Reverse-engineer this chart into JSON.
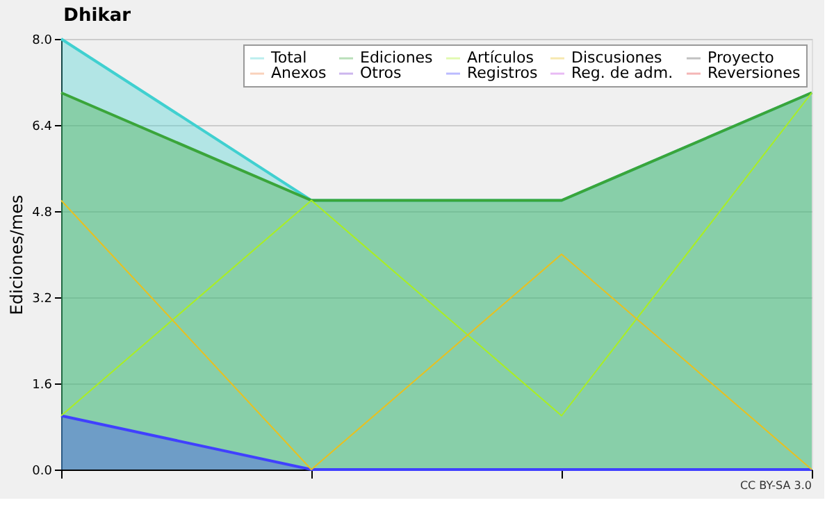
{
  "chart_data": {
    "type": "area",
    "title": "Dhikar",
    "ylabel": "Ediciones/mes",
    "categories": [
      null,
      null,
      null,
      null
    ],
    "ylim": [
      0,
      8
    ],
    "yticks": [
      {
        "value": 0,
        "label": "0.0"
      },
      {
        "value": 1.6,
        "label": "1.6"
      },
      {
        "value": 3.2,
        "label": "3.2"
      },
      {
        "value": 4.8,
        "label": "4.8"
      },
      {
        "value": 6.4,
        "label": "6.4"
      },
      {
        "value": 8,
        "label": "8.0"
      }
    ],
    "grid": "y",
    "legend": "top right",
    "tick_labels": "y",
    "annotations": [
      "CC BY-SA 3.0"
    ],
    "series": [
      {
        "name": "Total",
        "color": "#40d0d0",
        "values": [
          8,
          5,
          5,
          7
        ]
      },
      {
        "name": "Ediciones",
        "color": "#3aa53a",
        "values": [
          7,
          5,
          5,
          7
        ]
      },
      {
        "name": "Artículos",
        "type": "line",
        "color": "#aaee22",
        "values": [
          1,
          5,
          1,
          7
        ]
      },
      {
        "name": "Discusiones",
        "type": "line",
        "color": "#e8c020",
        "values": [
          5,
          0,
          4,
          0
        ]
      },
      {
        "name": "Proyecto",
        "type": "line",
        "color": "#505050",
        "values": [
          null,
          null,
          null,
          null
        ]
      },
      {
        "name": "Anexos",
        "type": "line",
        "color": "#f08040",
        "values": [
          null,
          null,
          null,
          null
        ]
      },
      {
        "name": "Otros",
        "type": "line",
        "color": "#7030d0",
        "values": [
          null,
          null,
          null,
          null
        ]
      },
      {
        "name": "Registros",
        "color": "#4040ff",
        "values": [
          1,
          0,
          0,
          0
        ]
      },
      {
        "name": "Reg. de adm.",
        "type": "line",
        "color": "#c040e0",
        "values": [
          null,
          null,
          null,
          null
        ]
      },
      {
        "name": "Reversiones",
        "type": "line",
        "color": "#e03030",
        "values": [
          null,
          null,
          null,
          null
        ]
      }
    ]
  }
}
